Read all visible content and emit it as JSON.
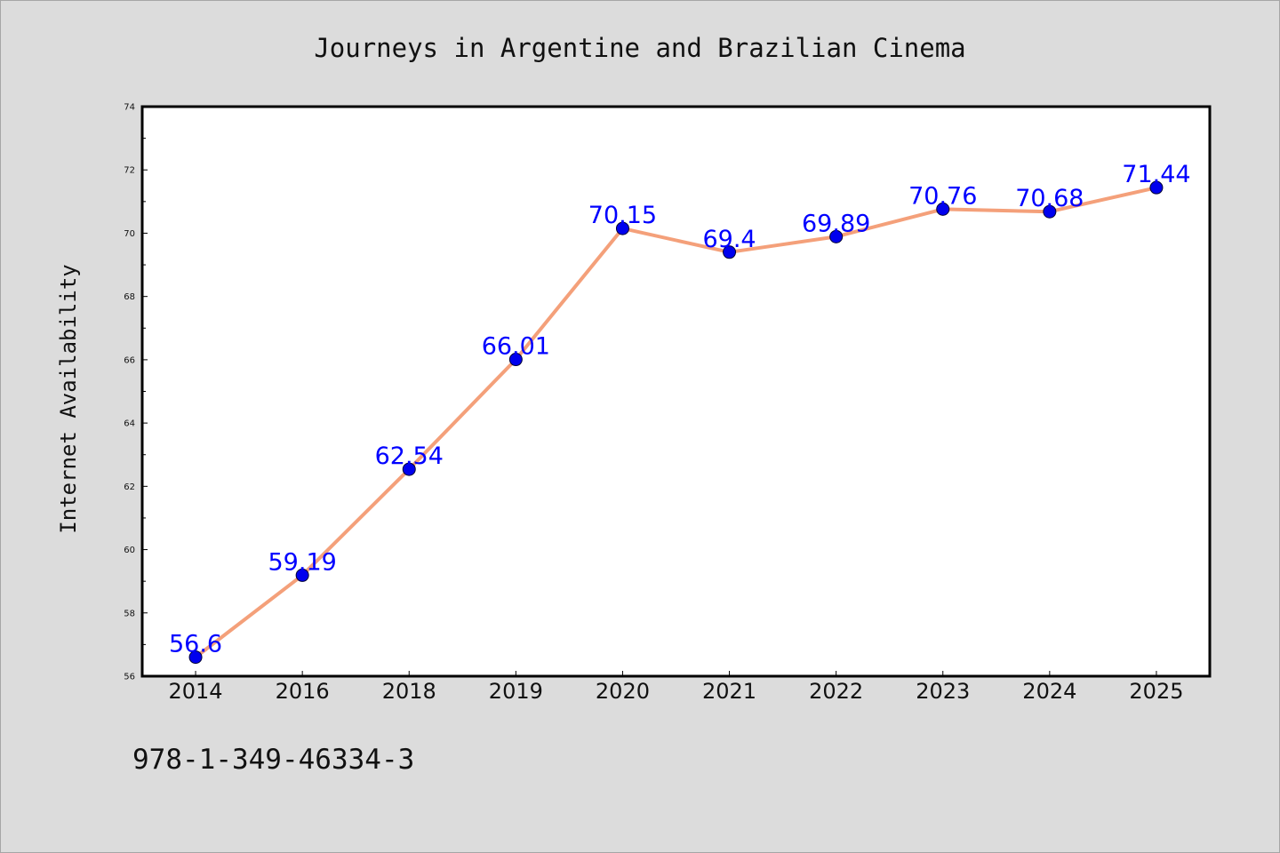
{
  "chart_data": {
    "type": "line",
    "title": "Journeys in Argentine and Brazilian Cinema",
    "xlabel": "",
    "ylabel": "Internet Availability",
    "categories": [
      "2014",
      "2016",
      "2018",
      "2019",
      "2020",
      "2021",
      "2022",
      "2023",
      "2024",
      "2025"
    ],
    "series": [
      {
        "values": [
          56.6,
          59.19,
          62.54,
          66.01,
          70.15,
          69.4,
          69.89,
          70.76,
          70.68,
          71.44
        ],
        "labels": [
          "56.6",
          "59.19",
          "62.54",
          "66.01",
          "70.15",
          "69.4",
          "69.89",
          "70.76",
          "70.68",
          "71.44"
        ]
      }
    ],
    "ylim": [
      56,
      74
    ],
    "yticks": [
      "56",
      "58",
      "60",
      "62",
      "64",
      "66",
      "68",
      "70",
      "72",
      "74"
    ],
    "grid": false,
    "line_color": "#f4a07a",
    "marker_color": "#0000ee",
    "label_color": "#0000ff",
    "background_color": "#dcdcdc",
    "plot_background_color": "#ffffff"
  },
  "footnote": "978-1-349-46334-3"
}
